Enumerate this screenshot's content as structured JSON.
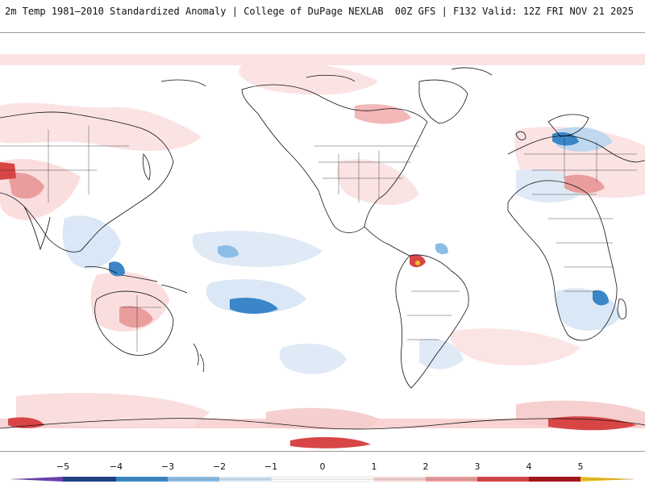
{
  "header": {
    "title": "2m Temp 1981–2010 Standardized Anomaly | College of DuPage NEXLAB",
    "run_info": "00Z GFS | F132 Valid: 12Z FRI NOV 21 2025"
  },
  "map": {
    "projection": "global equirectangular",
    "variable": "2m temperature standardized anomaly"
  },
  "colorbar": {
    "labels": [
      "−5",
      "−4",
      "−3",
      "−2",
      "−1",
      "0",
      "1",
      "2",
      "3",
      "4",
      "5"
    ],
    "colors": {
      "m5": "#3a2a6e",
      "m4": "#1f3f86",
      "m3": "#3a86c8",
      "m2": "#8cbde6",
      "m1": "#d4e4f4",
      "zero": "#ffffff",
      "p1": "#f6d6d6",
      "p2": "#ea9d9d",
      "p3": "#d84545",
      "p4": "#a8111a",
      "p5": "#7a0010",
      "extreme_low": "#6a3fb0",
      "extreme_high": "#f2c020"
    }
  }
}
